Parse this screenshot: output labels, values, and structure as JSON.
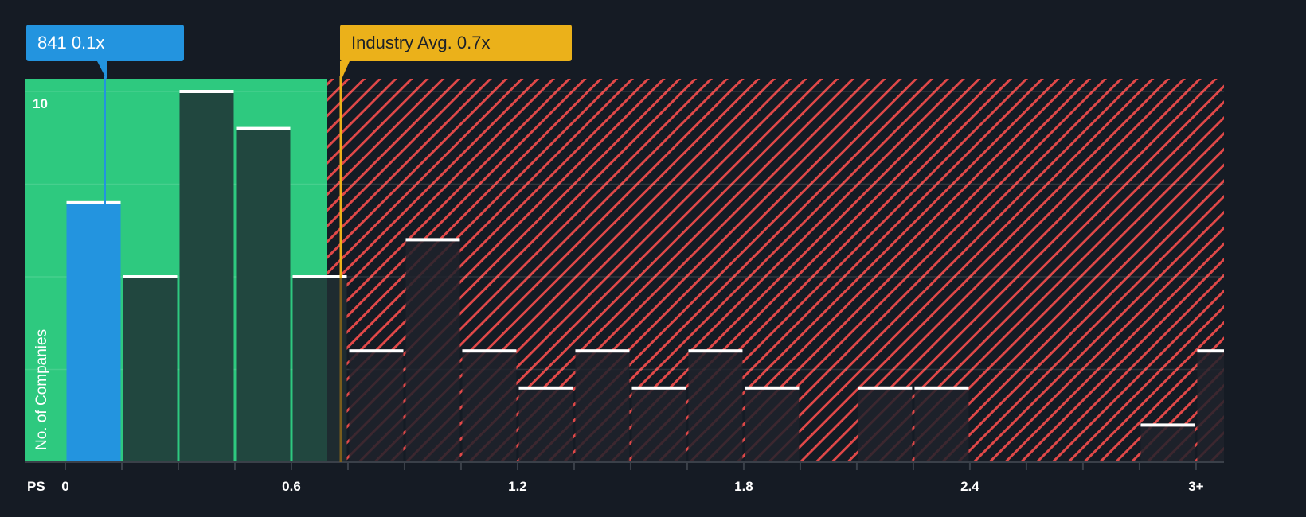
{
  "chart_data": {
    "type": "bar",
    "title": "",
    "xlabel": "PS",
    "ylabel": "No. of Companies",
    "x_tick_labels": [
      "0",
      "0.6",
      "1.2",
      "1.8",
      "2.4",
      "3+"
    ],
    "x_tick_values": [
      0,
      0.6,
      1.2,
      1.8,
      2.4,
      3.0
    ],
    "y_tick_labels": [
      "10"
    ],
    "ylim": [
      0,
      10.4
    ],
    "bin_width": 0.15,
    "bins_start": [
      0,
      0.15,
      0.3,
      0.45,
      0.6,
      0.75,
      0.9,
      1.05,
      1.2,
      1.35,
      1.5,
      1.65,
      1.8,
      1.95,
      2.1,
      2.25,
      2.4,
      2.55,
      2.7,
      2.85,
      3.0
    ],
    "values": [
      7,
      5,
      10,
      9,
      5,
      3,
      6,
      3,
      2,
      3,
      2,
      3,
      2,
      0,
      2,
      2,
      0,
      0,
      0,
      1,
      3
    ],
    "highlight_bin_index": 0,
    "grid": true,
    "annotations": {
      "company": {
        "label": "841 0.1x",
        "value": 0.1
      },
      "industry_avg": {
        "label": "Industry Avg. 0.7x",
        "value": 0.73
      }
    },
    "regions": {
      "undervalued_until": 0.7,
      "undervalued_color": "#2ec97f",
      "overvalued_color": "#e04848"
    }
  },
  "colors": {
    "background": "#151b24",
    "green_region": "#2ec97f",
    "green_bar": "#21473f",
    "highlight_bar": "#2394df",
    "hatch": "#e04848",
    "industry": "#ebb11a",
    "bar_cap": "#ffffff"
  },
  "labels": {
    "company_callout": "841 0.1x",
    "industry_callout": "Industry Avg. 0.7x",
    "y_axis": "No. of Companies",
    "x_axis_prefix": "PS",
    "y_top_tick": "10"
  }
}
